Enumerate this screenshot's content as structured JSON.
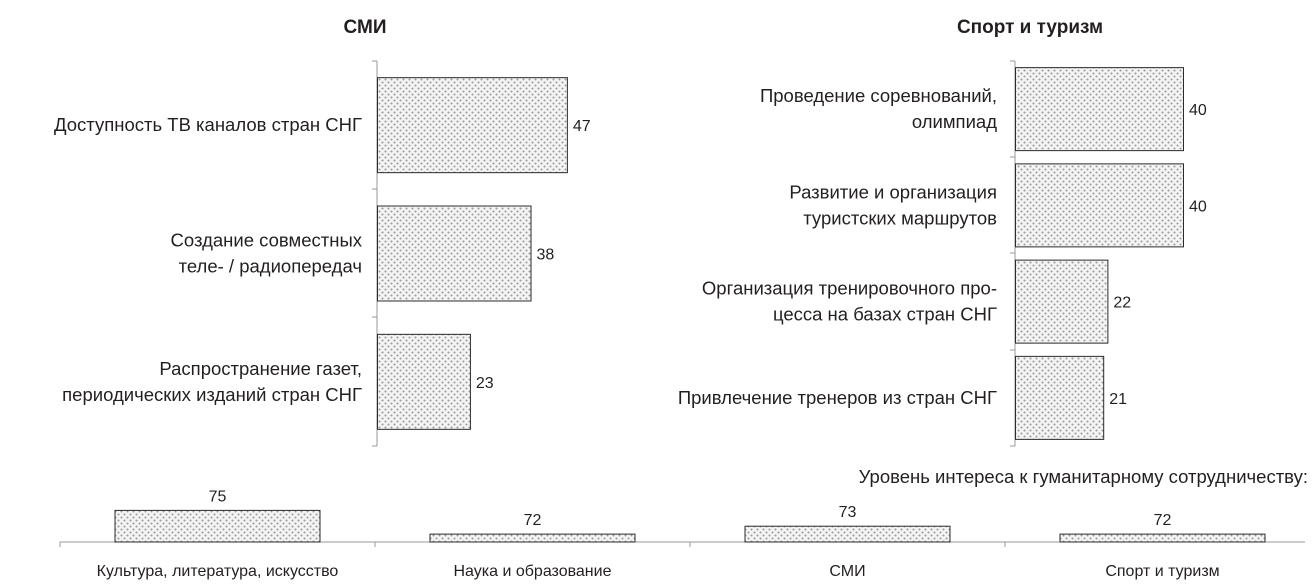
{
  "chart_data": [
    {
      "type": "bar",
      "orientation": "horizontal",
      "title": "СМИ",
      "categories": [
        [
          "Доступность ТВ каналов стран СНГ"
        ],
        [
          "Создание совместных",
          "теле- / радиопередач"
        ],
        [
          "Распространение газет,",
          "периодических изданий стран СНГ"
        ]
      ],
      "values": [
        47,
        38,
        23
      ]
    },
    {
      "type": "bar",
      "orientation": "horizontal",
      "title": "Спорт и туризм",
      "categories": [
        [
          "Проведение соревнований,",
          "олимпиад"
        ],
        [
          "Развитие и организация",
          "туристских маршрутов"
        ],
        [
          "Организация тренировочного про-",
          "цесса на базах стран СНГ"
        ],
        [
          "Привлечение тренеров из стран СНГ"
        ]
      ],
      "values": [
        40,
        40,
        22,
        21
      ]
    },
    {
      "type": "bar",
      "orientation": "vertical",
      "title": "Уровень интереса к гуманитарному сотрудничеству:",
      "categories": [
        "Культура, литература, искусство",
        "Наука и образование",
        "СМИ",
        "Спорт и туризм"
      ],
      "values": [
        75,
        72,
        73,
        72
      ],
      "ylim": [
        71,
        80
      ]
    }
  ],
  "colors": {
    "bar_dots": "#9a9a9a",
    "bar_fill": "#f4f4f4",
    "bar_stroke": "#2b2b2b",
    "axis": "#9a9a9a",
    "text": "#231f20"
  }
}
